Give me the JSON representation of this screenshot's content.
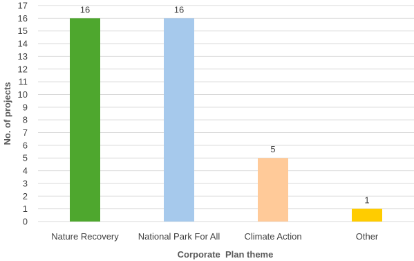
{
  "chart_data": {
    "type": "bar",
    "categories": [
      "Nature Recovery",
      "National Park For All",
      "Climate Action",
      "Other"
    ],
    "values": [
      16,
      16,
      5,
      1
    ],
    "colors": [
      "#4ea72e",
      "#a6c9ec",
      "#ffca99",
      "#ffcc00"
    ],
    "title": "",
    "xlabel": "Corporate  Plan theme",
    "ylabel": "No. of projects",
    "ylim": [
      0,
      17
    ],
    "yticks": [
      "0",
      "1",
      "2",
      "3",
      "4",
      "5",
      "6",
      "7",
      "8",
      "9",
      "10",
      "11",
      "12",
      "13",
      "14",
      "15",
      "16",
      "17"
    ],
    "data_labels": [
      "16",
      "16",
      "5",
      "1"
    ],
    "grid": true,
    "grid_color": "#d9d9d9",
    "legend": "none"
  }
}
